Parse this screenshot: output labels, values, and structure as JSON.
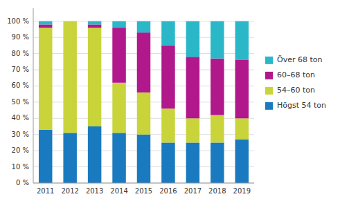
{
  "chart_data": {
    "type": "bar",
    "stacked": true,
    "categories": [
      "2011",
      "2012",
      "2013",
      "2014",
      "2015",
      "2016",
      "2017",
      "2018",
      "2019"
    ],
    "series": [
      {
        "name": "Högst 54 ton",
        "color": "#1a7abf",
        "values": [
          33,
          31,
          35,
          31,
          30,
          25,
          25,
          25,
          27
        ]
      },
      {
        "name": "54–60 ton",
        "color": "#c8d43a",
        "values": [
          63,
          69,
          61,
          31,
          26,
          21,
          15,
          17,
          13
        ]
      },
      {
        "name": "60–68 ton",
        "color": "#b0188c",
        "values": [
          2,
          0,
          2,
          34,
          37,
          39,
          38,
          35,
          36
        ]
      },
      {
        "name": "Över 68 ton",
        "color": "#2ab8c8",
        "values": [
          2,
          0,
          2,
          4,
          7,
          15,
          22,
          23,
          24
        ]
      }
    ],
    "ylim": [
      0,
      108
    ],
    "yticks": [
      {
        "value": 0,
        "label": "0 %"
      },
      {
        "value": 10,
        "label": "10 %"
      },
      {
        "value": 20,
        "label": "20 %"
      },
      {
        "value": 30,
        "label": "30 %"
      },
      {
        "value": 40,
        "label": "40 %"
      },
      {
        "value": 50,
        "label": "50 %"
      },
      {
        "value": 60,
        "label": "60 %"
      },
      {
        "value": 70,
        "label": "70 %"
      },
      {
        "value": 80,
        "label": "80 %"
      },
      {
        "value": 90,
        "label": "90 %"
      },
      {
        "value": 100,
        "label": "100 %"
      }
    ],
    "grid": true,
    "legend": "right"
  }
}
